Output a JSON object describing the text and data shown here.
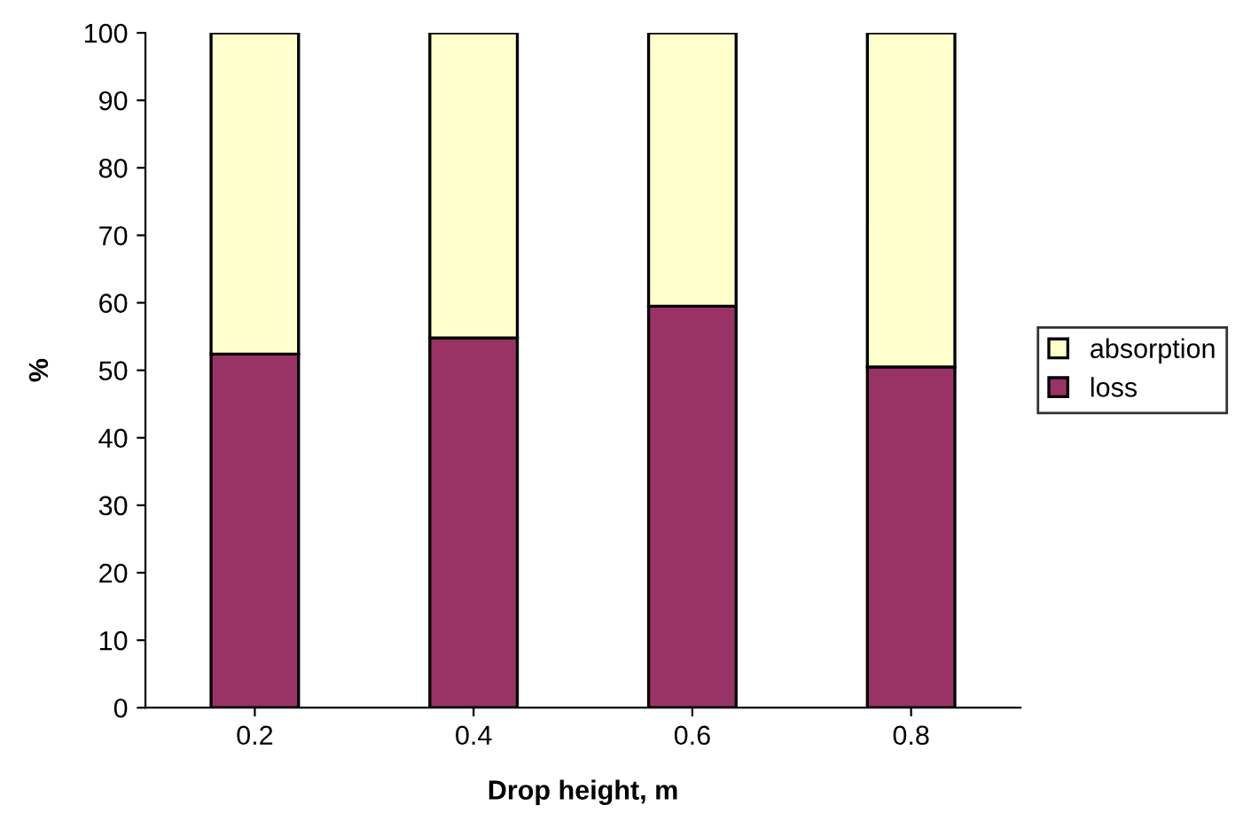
{
  "chart_data": {
    "type": "bar",
    "stacked": true,
    "xlabel": "Drop height, m",
    "ylabel": "%",
    "categories": [
      "0.2",
      "0.4",
      "0.6",
      "0.8"
    ],
    "series": [
      {
        "name": "loss",
        "color": "#993366",
        "values": [
          52.4,
          54.8,
          59.5,
          50.5
        ]
      },
      {
        "name": "absorption",
        "color": "#ffffcc",
        "values": [
          47.6,
          45.2,
          40.5,
          49.5
        ]
      }
    ],
    "ylim": [
      0,
      100
    ],
    "yticks": [
      0,
      10,
      20,
      30,
      40,
      50,
      60,
      70,
      80,
      90,
      100
    ],
    "grid": false,
    "legend": "right"
  }
}
